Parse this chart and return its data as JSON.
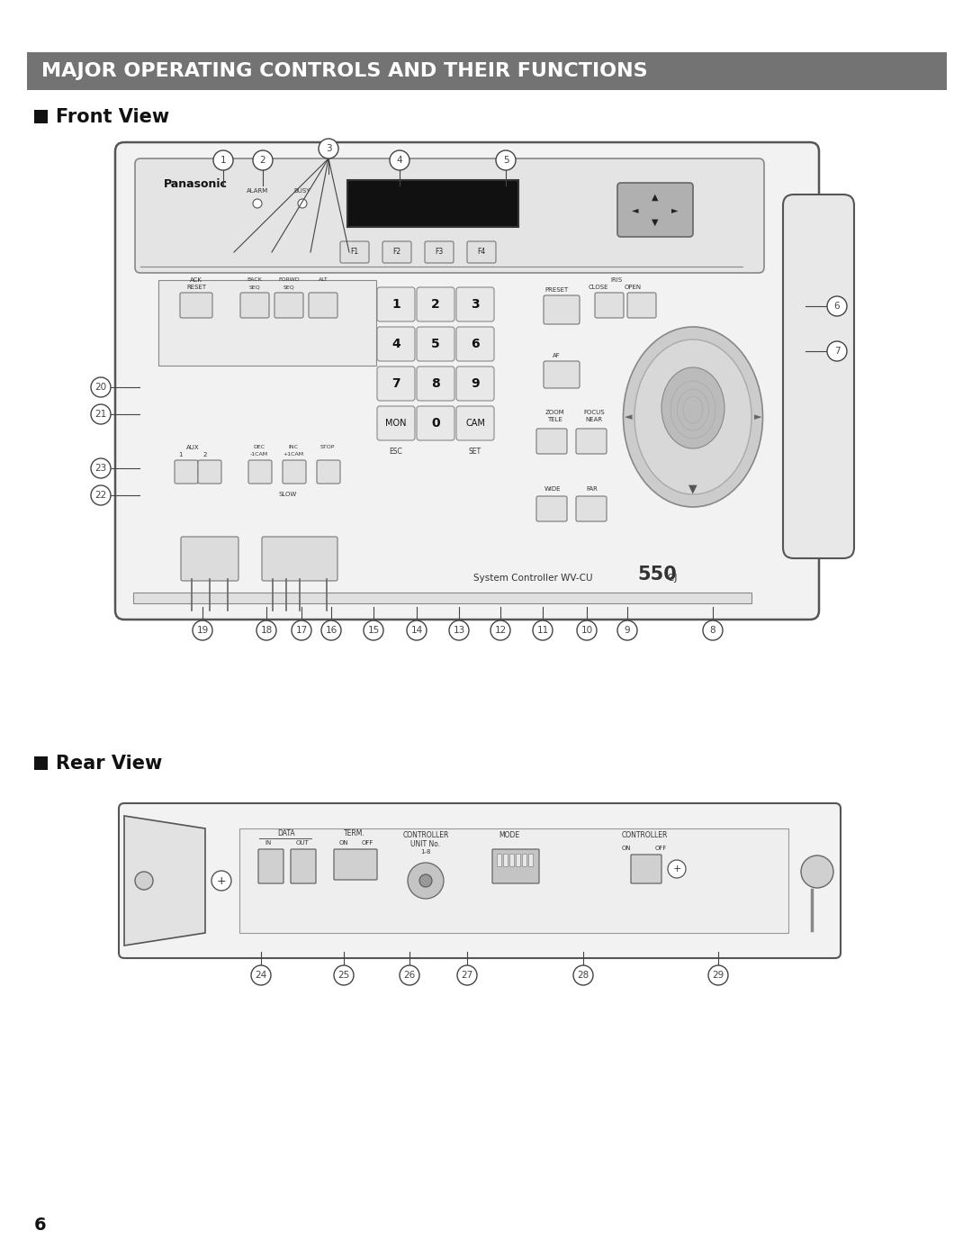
{
  "title": "MAJOR OPERATING CONTROLS AND THEIR FUNCTIONS",
  "title_bg": "#737373",
  "title_color": "#ffffff",
  "page_bg": "#ffffff",
  "front_view_label": "Front View",
  "rear_view_label": "Rear View",
  "page_number": "6",
  "body_fill": "#f2f2f2",
  "body_stroke": "#555555",
  "button_fill": "#e0e0e0",
  "button_stroke": "#777777",
  "display_fill": "#111111",
  "dpad_fill": "#b0b0b0",
  "joy_outer": "#c0c0c0",
  "joy_inner": "#d8d8d8",
  "top_panel_fill": "#e4e4e4",
  "line_color": "#444444"
}
